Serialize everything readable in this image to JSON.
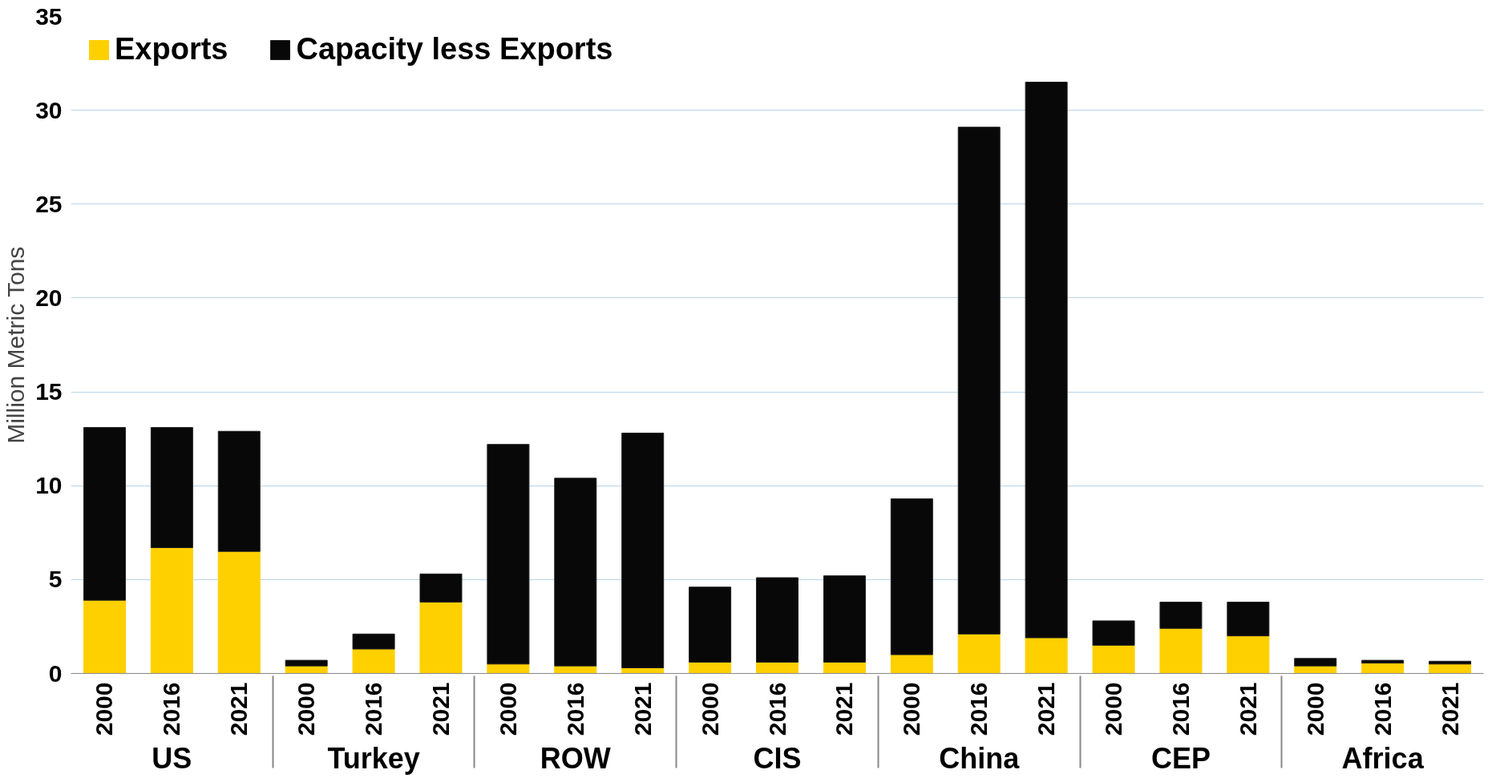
{
  "chart_data": {
    "type": "bar",
    "stacked": true,
    "ylabel": "Million Metric Tons",
    "categories": [
      "2000",
      "2016",
      "2021",
      "2000",
      "2016",
      "2021",
      "2000",
      "2016",
      "2021",
      "2000",
      "2016",
      "2021",
      "2000",
      "2016",
      "2021",
      "2000",
      "2016",
      "2021",
      "2000",
      "2016",
      "2021"
    ],
    "annotations": [
      "US",
      "Turkey",
      "ROW",
      "CIS",
      "China",
      "CEP",
      "Africa"
    ],
    "series": [
      {
        "name": "Exports",
        "color": "#ffd000",
        "values": [
          3.9,
          6.7,
          6.5,
          0.4,
          1.3,
          3.8,
          0.5,
          0.4,
          0.3,
          0.6,
          0.6,
          0.6,
          1.0,
          2.1,
          1.9,
          1.5,
          2.4,
          2.0,
          0.4,
          0.55,
          0.5
        ]
      },
      {
        "name": "Capacity less Exports",
        "color": "#080808",
        "values": [
          9.2,
          6.4,
          6.4,
          0.3,
          0.8,
          1.5,
          11.7,
          10.0,
          12.5,
          4.0,
          4.5,
          4.6,
          8.3,
          27.0,
          29.6,
          1.3,
          1.4,
          1.8,
          0.4,
          0.15,
          0.15
        ]
      }
    ],
    "ylim": [
      0,
      35
    ],
    "yticks": [
      0,
      5,
      10,
      15,
      20,
      25,
      30,
      35
    ],
    "grid": "y",
    "legend": "top left"
  }
}
